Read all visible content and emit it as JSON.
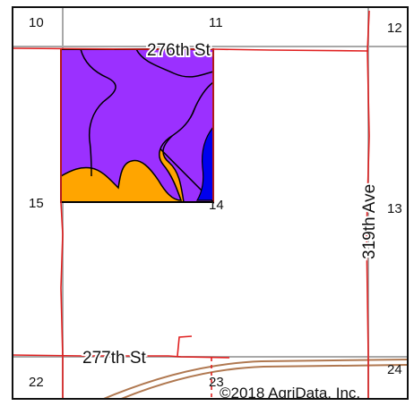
{
  "map": {
    "section_numbers": [
      "10",
      "11",
      "12",
      "15",
      "14",
      "13",
      "22",
      "23",
      "24"
    ],
    "roads": {
      "north": "276th St",
      "south": "277th St",
      "east": "319th Ave"
    },
    "copyright": "©2018 AgriData, Inc.",
    "colors": {
      "soil_purple": "#9b30ff",
      "soil_orange": "#ffa500",
      "soil_blue": "#0000ee",
      "road_line": "#e02020",
      "section_line": "#a8a8a8",
      "railroad": "#b07850"
    }
  }
}
